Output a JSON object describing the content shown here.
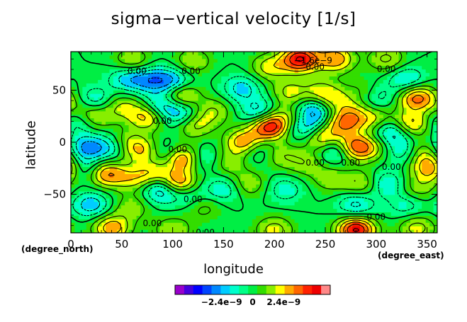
{
  "chart_data": {
    "type": "heatmap",
    "title": "sigma−vertical velocity [1/s]",
    "xlabel": "longitude",
    "ylabel": "latitude",
    "x_unit_label": "(degree_east)",
    "y_unit_label": "(degree_north)",
    "xlim": [
      0,
      360
    ],
    "ylim": [
      -87,
      87
    ],
    "x_ticks": [
      0,
      50,
      100,
      150,
      200,
      250,
      300,
      350
    ],
    "y_ticks": [
      -50,
      0,
      50
    ],
    "x_tick_labels": [
      "0",
      "50",
      "100",
      "150",
      "200",
      "250",
      "300",
      "350"
    ],
    "y_tick_labels": [
      "−50",
      "0",
      "50"
    ],
    "contour_labels": [
      {
        "text": "0.00",
        "x": 65,
        "y": 68
      },
      {
        "text": "0.00",
        "x": 118,
        "y": 68
      },
      {
        "text": "0.00",
        "x": 240,
        "y": 72
      },
      {
        "text": "0.00",
        "x": 310,
        "y": 70
      },
      {
        "text": "0.00",
        "x": 90,
        "y": 20
      },
      {
        "text": "0.00",
        "x": 105,
        "y": -7
      },
      {
        "text": "0.00",
        "x": 240,
        "y": -20
      },
      {
        "text": "0.00",
        "x": 275,
        "y": -20
      },
      {
        "text": "0.00",
        "x": 315,
        "y": -24
      },
      {
        "text": "0.00",
        "x": 120,
        "y": -55
      },
      {
        "text": "0.00",
        "x": 80,
        "y": -78
      },
      {
        "text": "0.00",
        "x": 132,
        "y": -87
      },
      {
        "text": "0.00",
        "x": 300,
        "y": -72
      },
      {
        "text": "−1.6e−9",
        "x": 238,
        "y": 78
      }
    ],
    "colorbar": {
      "colors": [
        "#9900cc",
        "#4400dd",
        "#0000ff",
        "#0044ff",
        "#0088ff",
        "#00ccff",
        "#00ffcc",
        "#00ff88",
        "#00ee44",
        "#33dd00",
        "#88ee00",
        "#ffff00",
        "#ffaa00",
        "#ff6600",
        "#ff2200",
        "#ee0000",
        "#ff8888"
      ],
      "tick_labels": [
        "−2.4e−9",
        "0",
        "2.4e−9"
      ],
      "tick_values": [
        -2.4e-09,
        0,
        2.4e-09
      ],
      "range": [
        -6e-09,
        6e-09
      ]
    },
    "field": {
      "background": 0,
      "features": [
        {
          "lon": 60,
          "lat": 78,
          "amp": 1.8e-09
        },
        {
          "lon": 120,
          "lat": 78,
          "amp": 1.6e-09
        },
        {
          "lon": 225,
          "lat": 80,
          "amp": 4.8e-09
        },
        {
          "lon": 195,
          "lat": 72,
          "amp": 2e-09
        },
        {
          "lon": 260,
          "lat": 80,
          "amp": 3e-09
        },
        {
          "lon": 310,
          "lat": 80,
          "amp": 1.8e-09
        },
        {
          "lon": 330,
          "lat": 60,
          "amp": -2e-09
        },
        {
          "lon": 55,
          "lat": 62,
          "amp": -2e-09
        },
        {
          "lon": 78,
          "lat": 60,
          "amp": -2.4e-09
        },
        {
          "lon": 100,
          "lat": 58,
          "amp": -2.6e-09
        },
        {
          "lon": 108,
          "lat": 46,
          "amp": 2.6e-09
        },
        {
          "lon": 168,
          "lat": 52,
          "amp": -2e-09
        },
        {
          "lon": 215,
          "lat": 48,
          "amp": 1.8e-09
        },
        {
          "lon": 245,
          "lat": 50,
          "amp": 1.6e-09
        },
        {
          "lon": 258,
          "lat": 40,
          "amp": 1.8e-09
        },
        {
          "lon": 290,
          "lat": 48,
          "amp": 1.4e-09
        },
        {
          "lon": 300,
          "lat": 44,
          "amp": -1.8e-09
        },
        {
          "lon": 340,
          "lat": 43,
          "amp": 3.6e-09
        },
        {
          "lon": 10,
          "lat": 35,
          "amp": 1.4e-09
        },
        {
          "lon": 22,
          "lat": 40,
          "amp": -2.2e-09
        },
        {
          "lon": 50,
          "lat": 35,
          "amp": 1.6e-09
        },
        {
          "lon": 25,
          "lat": 25,
          "amp": 1.8e-09
        },
        {
          "lon": 75,
          "lat": 25,
          "amp": 3e-09
        },
        {
          "lon": 88,
          "lat": 34,
          "amp": -2.4e-09
        },
        {
          "lon": 110,
          "lat": 26,
          "amp": -2.4e-09
        },
        {
          "lon": 120,
          "lat": 18,
          "amp": 2.4e-09
        },
        {
          "lon": 140,
          "lat": 30,
          "amp": 1.6e-09
        },
        {
          "lon": 185,
          "lat": 30,
          "amp": -2.2e-09
        },
        {
          "lon": 195,
          "lat": 15,
          "amp": 4.4e-09
        },
        {
          "lon": 210,
          "lat": 25,
          "amp": 1.4e-09
        },
        {
          "lon": 240,
          "lat": 30,
          "amp": -2.8e-09
        },
        {
          "lon": 232,
          "lat": 12,
          "amp": -2.4e-09
        },
        {
          "lon": 245,
          "lat": 5,
          "amp": 3e-09
        },
        {
          "lon": 268,
          "lat": 18,
          "amp": 2.6e-09
        },
        {
          "lon": 278,
          "lat": 27,
          "amp": 1.6e-09
        },
        {
          "lon": 300,
          "lat": 22,
          "amp": 1.6e-09
        },
        {
          "lon": 315,
          "lat": 10,
          "amp": -2.4e-09
        },
        {
          "lon": 335,
          "lat": 18,
          "amp": 2.8e-09
        },
        {
          "lon": 5,
          "lat": 20,
          "amp": -1.4e-09
        },
        {
          "lon": 15,
          "lat": -5,
          "amp": -2.6e-09
        },
        {
          "lon": 40,
          "lat": -5,
          "amp": -1.8e-09
        },
        {
          "lon": 55,
          "lat": 0,
          "amp": 1.6e-09
        },
        {
          "lon": 70,
          "lat": -8,
          "amp": 2.2e-09
        },
        {
          "lon": 95,
          "lat": -10,
          "amp": -1.6e-09
        },
        {
          "lon": 110,
          "lat": -15,
          "amp": 4e-09
        },
        {
          "lon": 128,
          "lat": -15,
          "amp": -1.8e-09
        },
        {
          "lon": 155,
          "lat": -20,
          "amp": 1.4e-09
        },
        {
          "lon": 170,
          "lat": 0,
          "amp": 3.2e-09
        },
        {
          "lon": 185,
          "lat": -8,
          "amp": -1.6e-09
        },
        {
          "lon": 205,
          "lat": -12,
          "amp": 1.6e-09
        },
        {
          "lon": 230,
          "lat": -20,
          "amp": 1.4e-09
        },
        {
          "lon": 262,
          "lat": -8,
          "amp": -2.4e-09
        },
        {
          "lon": 278,
          "lat": -5,
          "amp": 4e-09
        },
        {
          "lon": 300,
          "lat": -5,
          "amp": 1.6e-09
        },
        {
          "lon": 325,
          "lat": -8,
          "amp": -1.8e-09
        },
        {
          "lon": 345,
          "lat": -10,
          "amp": 1.6e-09
        },
        {
          "lon": 355,
          "lat": -25,
          "amp": 3.6e-09
        },
        {
          "lon": 10,
          "lat": -25,
          "amp": -2.2e-09
        },
        {
          "lon": 35,
          "lat": -30,
          "amp": 3.2e-09
        },
        {
          "lon": 60,
          "lat": -35,
          "amp": 1.6e-09
        },
        {
          "lon": 80,
          "lat": -30,
          "amp": 2e-09
        },
        {
          "lon": 90,
          "lat": -45,
          "amp": -3.2e-09
        },
        {
          "lon": 105,
          "lat": -40,
          "amp": 4e-09
        },
        {
          "lon": 115,
          "lat": -50,
          "amp": -1.6e-09
        },
        {
          "lon": 150,
          "lat": -45,
          "amp": -1.6e-09
        },
        {
          "lon": 175,
          "lat": -40,
          "amp": 1.6e-09
        },
        {
          "lon": 210,
          "lat": -45,
          "amp": -1.4e-09
        },
        {
          "lon": 255,
          "lat": -35,
          "amp": 1.4e-09
        },
        {
          "lon": 285,
          "lat": -40,
          "amp": 1.8e-09
        },
        {
          "lon": 310,
          "lat": -40,
          "amp": -1.8e-09
        },
        {
          "lon": 340,
          "lat": -45,
          "amp": 1.4e-09
        },
        {
          "lon": 20,
          "lat": -60,
          "amp": -2.2e-09
        },
        {
          "lon": 60,
          "lat": -62,
          "amp": 1.4e-09
        },
        {
          "lon": 130,
          "lat": -62,
          "amp": 1.2e-09
        },
        {
          "lon": 280,
          "lat": -60,
          "amp": -2e-09
        },
        {
          "lon": 330,
          "lat": -60,
          "amp": -1.4e-09
        },
        {
          "lon": 40,
          "lat": -82,
          "amp": 3e-09
        },
        {
          "lon": 100,
          "lat": -84,
          "amp": 1.6e-09
        },
        {
          "lon": 200,
          "lat": -84,
          "amp": 2e-09
        },
        {
          "lon": 280,
          "lat": -84,
          "amp": 5e-09
        },
        {
          "lon": 340,
          "lat": -82,
          "amp": 2e-09
        }
      ]
    }
  }
}
